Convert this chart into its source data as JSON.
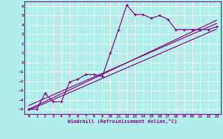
{
  "xlabel": "Windchill (Refroidissement éolien,°C)",
  "background_color": "#b0eeea",
  "grid_color": "#ffffff",
  "line_color": "#880088",
  "xlim": [
    -0.5,
    23.5
  ],
  "ylim": [
    -5.5,
    6.5
  ],
  "xticks": [
    0,
    1,
    2,
    3,
    4,
    5,
    6,
    7,
    8,
    9,
    10,
    11,
    12,
    13,
    14,
    15,
    16,
    17,
    18,
    19,
    20,
    21,
    22,
    23
  ],
  "yticks": [
    -5,
    -4,
    -3,
    -2,
    -1,
    0,
    1,
    2,
    3,
    4,
    5,
    6
  ],
  "data_x": [
    0,
    1,
    2,
    3,
    4,
    5,
    6,
    7,
    8,
    9,
    10,
    11,
    12,
    13,
    14,
    15,
    16,
    17,
    18,
    19,
    20,
    21,
    22,
    23
  ],
  "data_y": [
    -5,
    -5,
    -3.3,
    -4.2,
    -4.2,
    -2.1,
    -1.8,
    -1.3,
    -1.3,
    -1.5,
    1.0,
    3.5,
    6.1,
    5.1,
    5.1,
    4.7,
    5.0,
    4.6,
    3.5,
    3.5,
    3.5,
    3.5,
    3.5,
    3.8
  ],
  "reg_lines": [
    {
      "x": [
        0,
        23
      ],
      "y": [
        -5.1,
        3.55
      ]
    },
    {
      "x": [
        0,
        23
      ],
      "y": [
        -4.6,
        4.15
      ]
    },
    {
      "x": [
        0,
        23
      ],
      "y": [
        -5.0,
        4.5
      ]
    }
  ]
}
